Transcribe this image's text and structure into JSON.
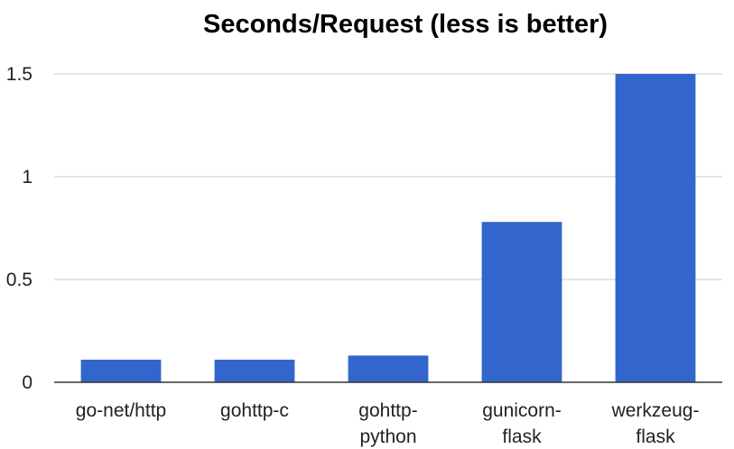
{
  "chart_data": {
    "type": "bar",
    "title": "Seconds/Request (less is better)",
    "xlabel": "",
    "ylabel": "",
    "categories": [
      [
        "go-net/http"
      ],
      [
        "gohttp-c"
      ],
      [
        "gohttp-",
        "python"
      ],
      [
        "gunicorn-",
        "flask"
      ],
      [
        "werkzeug-",
        "flask"
      ]
    ],
    "values": [
      0.11,
      0.11,
      0.13,
      0.78,
      1.5
    ],
    "ylim": [
      0,
      1.5
    ],
    "yticks": [
      0,
      0.5,
      1,
      1.5
    ],
    "ytick_labels": [
      "0",
      "0.5",
      "1",
      "1.5"
    ],
    "grid": true,
    "legend": "none",
    "colors": {
      "bar": "#3366cc",
      "grid": "#cccccc",
      "axis": "#333333"
    }
  }
}
